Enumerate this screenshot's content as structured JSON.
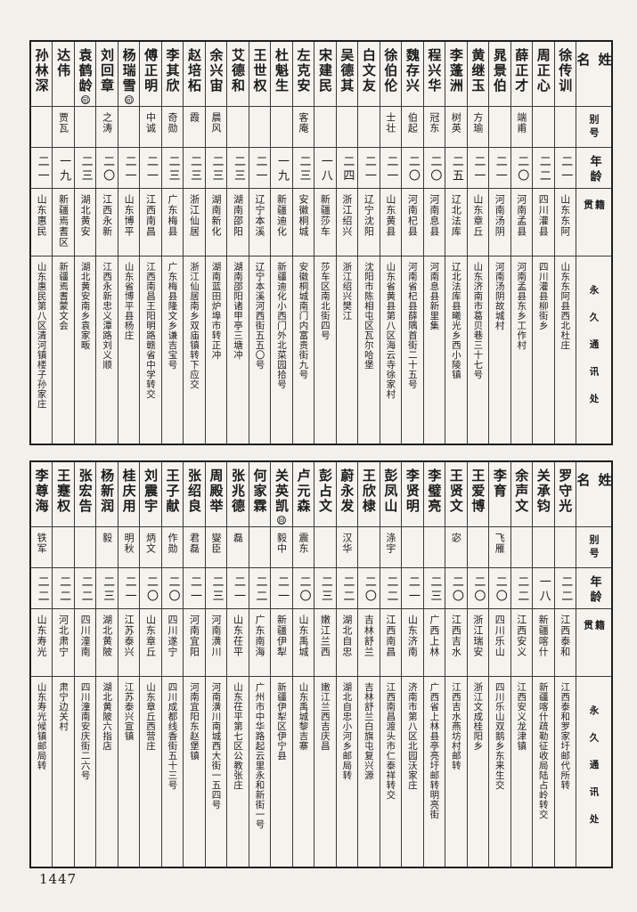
{
  "page": {
    "number": "1447"
  },
  "headers": {
    "name": "姓名",
    "alias": "别号",
    "age": "年龄",
    "native": "籍贯",
    "address": "永久通讯处"
  },
  "tables": [
    {
      "people": [
        {
          "name": "徐传训",
          "alias": "",
          "age": "二一",
          "native": "山东东阿",
          "address": "山东东阿县西北杜庄"
        },
        {
          "name": "周正心",
          "alias": "",
          "age": "二二",
          "native": "四川灌县",
          "address": "四川灌县柳街乡"
        },
        {
          "name": "薛正才",
          "alias": "端甫",
          "age": "二〇",
          "native": "河南孟县",
          "address": "河南孟县东乡工作村"
        },
        {
          "name": "晁景伯",
          "alias": "",
          "age": "二一",
          "native": "河南汤阴",
          "address": "河南汤阴故城村"
        },
        {
          "name": "黄继玉",
          "alias": "方瑜",
          "age": "二一",
          "native": "山东章丘",
          "address": "山东济南市葛贝巷三十七号"
        },
        {
          "name": "李蓬洲",
          "alias": "树英",
          "age": "二五",
          "native": "辽北法库",
          "address": "辽北法库县曦光乡西小陵镇"
        },
        {
          "name": "程兴华",
          "alias": "冠东",
          "age": "二〇",
          "native": "河南息县",
          "address": "河南息县新里集"
        },
        {
          "name": "魏存兴",
          "alias": "伯起",
          "age": "二〇",
          "native": "河南杞县",
          "address": "河南省杞县薛隅首街二十五号"
        },
        {
          "name": "徐伯伦",
          "alias": "士壮",
          "age": "二一",
          "native": "山东黄县",
          "address": "山东省黄县第八区海云寺徐家村"
        },
        {
          "name": "白文友",
          "alias": "",
          "age": "二一",
          "native": "辽宁沈阳",
          "address": "沈阳市陈相屯区瓦尔哈堡"
        },
        {
          "name": "吴德其",
          "alias": "",
          "age": "二四",
          "native": "浙江绍兴",
          "address": "浙江绍兴樊江"
        },
        {
          "name": "宋建民",
          "alias": "",
          "age": "一八",
          "native": "新疆莎车",
          "address": "莎车区南北街四号"
        },
        {
          "name": "左克安",
          "alias": "客庵",
          "age": "二三",
          "native": "安徽桐城",
          "address": "安徽桐城南门内富贵街九号"
        },
        {
          "name": "杜魁生",
          "alias": "",
          "age": "一九",
          "native": "新疆迪化",
          "address": "新疆迪化小西门外北菜园拾号"
        },
        {
          "name": "王世权",
          "alias": "",
          "age": "二一",
          "native": "辽宁本溪",
          "address": "辽宁本溪河西街五五〇号"
        },
        {
          "name": "艾德和",
          "alias": "",
          "age": "二三",
          "native": "湖南邵阳",
          "address": "湖南邵阳诸甲亭三塘冲"
        },
        {
          "name": "余兴宙",
          "alias": "晨风",
          "age": "二三",
          "native": "湖南新化",
          "address": "湖南蓝田炉埠市转正冲"
        },
        {
          "name": "赵培柘",
          "alias": "霞",
          "age": "二三",
          "native": "浙江仙居",
          "address": "浙江仙居南乡双庙镇转下应交"
        },
        {
          "name": "李其欣",
          "alias": "奇勋",
          "age": "二三",
          "native": "广东梅县",
          "address": "广东梅县隆文乡谦吉宝号"
        },
        {
          "name": "傅正明",
          "alias": "中诚",
          "age": "二一",
          "native": "江西南昌",
          "address": "江西南昌王阳明路赣省中学转交"
        },
        {
          "name": "杨瑞雪",
          "mark": "回",
          "alias": "",
          "age": "二一",
          "native": "山东博平",
          "address": "山东省博平县杨庄"
        },
        {
          "name": "刘回章",
          "alias": "之涛",
          "age": "二〇",
          "native": "江西永新",
          "address": "江西永新忠义潭路刘义顺"
        },
        {
          "name": "袁鹤龄",
          "mark": "回",
          "alias": "",
          "age": "二三",
          "native": "湖北黄安",
          "address": "湖北黄安南乡袁家畈"
        },
        {
          "name": "达伟",
          "alias": "贾瓦",
          "age": "一九",
          "native": "新疆焉耆区",
          "address": "新疆焉耆蒙文会"
        },
        {
          "name": "孙林深",
          "alias": "",
          "age": "二一",
          "native": "山东惠民",
          "address": "山东惠民第八区清河镇楼子孙家庄"
        }
      ]
    },
    {
      "people": [
        {
          "name": "罗守光",
          "alias": "",
          "age": "二二",
          "native": "江西泰和",
          "address": "江西泰和罗家圩邮代所转"
        },
        {
          "name": "关承钧",
          "alias": "",
          "age": "一八",
          "native": "新疆喀什",
          "address": "新疆喀什疏勒征收局陆占岭转交"
        },
        {
          "name": "余声文",
          "alias": "",
          "age": "二二",
          "native": "江西安义",
          "address": "江西安义龙津镇"
        },
        {
          "name": "李育",
          "alias": "飞雁",
          "age": "二〇",
          "native": "四川乐山",
          "address": "四川乐山双鹅乡东来生交"
        },
        {
          "name": "王爱博",
          "alias": "",
          "age": "二〇",
          "native": "浙江瑞安",
          "address": "浙江文成桂阳乡"
        },
        {
          "name": "王贤文",
          "alias": "宓",
          "age": "二〇",
          "native": "江西吉水",
          "address": "江西吉水燕坊村邮转"
        },
        {
          "name": "李璧亮",
          "alias": "",
          "age": "二三",
          "native": "广西上林",
          "address": "广西省上林县亭亮圩邮转明亮街"
        },
        {
          "name": "李贤明",
          "alias": "",
          "age": "二一",
          "native": "山东济南",
          "address": "济南市第八区北园沃家庄"
        },
        {
          "name": "彭凤山",
          "alias": "涤宇",
          "age": "二二",
          "native": "江西南昌",
          "address": "江西南昌渡头市仁泰祥转交"
        },
        {
          "name": "王欣棣",
          "alias": "",
          "age": "二〇",
          "native": "吉林舒兰",
          "address": "吉林舒兰白旗屯复兴源"
        },
        {
          "name": "蔚永发",
          "alias": "汉华",
          "age": "二二",
          "native": "湖北自忠",
          "address": "湖北自忠小河乡邮局转"
        },
        {
          "name": "彭占文",
          "alias": "",
          "age": "二三",
          "native": "嫩江兰西",
          "address": "嫩江兰西吉庆昌"
        },
        {
          "name": "卢元森",
          "alias": "震东",
          "age": "二〇",
          "native": "山东禹城",
          "address": "山东禹城黎吉寨"
        },
        {
          "name": "关英凯",
          "mark": "回",
          "alias": "毅中",
          "age": "二一",
          "native": "新疆伊犁",
          "address": "新疆伊犁区伊宁县"
        },
        {
          "name": "何家霖",
          "alias": "",
          "age": "二二",
          "native": "广东南海",
          "address": "广州市中华路起云里永和新街一号"
        },
        {
          "name": "张兆德",
          "alias": "磊",
          "age": "二一",
          "native": "山东茌平",
          "address": "山东茌平第七区公教张庄"
        },
        {
          "name": "周殿举",
          "alias": "燮臣",
          "age": "二三",
          "native": "河南潢川",
          "address": "河南潢川南城西大街一五四号"
        },
        {
          "name": "张绍良",
          "alias": "君磊",
          "age": "二一",
          "native": "河南宜阳",
          "address": "河南宜阳东赵堡镇"
        },
        {
          "name": "王子献",
          "alias": "作勋",
          "age": "二〇",
          "native": "四川遂宁",
          "address": "四川成都线香街五十三号"
        },
        {
          "name": "刘震宇",
          "alias": "炳文",
          "age": "二〇",
          "native": "山东章丘",
          "address": "山东章丘西营庄"
        },
        {
          "name": "桂庆用",
          "alias": "明秋",
          "age": "二一",
          "native": "江苏泰兴",
          "address": "江苏泰兴宣镇"
        },
        {
          "name": "杨新润",
          "alias": "毅",
          "age": "二三",
          "native": "湖北黄陂",
          "address": "湖北黄陂六指店"
        },
        {
          "name": "张宏告",
          "alias": "",
          "age": "二二",
          "native": "四川潼南",
          "address": "四川潼南安庆街二六号"
        },
        {
          "name": "王蹇权",
          "alias": "",
          "age": "二二",
          "native": "河北肃宁",
          "address": "肃宁边关村"
        },
        {
          "name": "李尊海",
          "alias": "铁军",
          "age": "二二",
          "native": "山东寿光",
          "address": "山东寿光候镇邮局转"
        }
      ]
    }
  ]
}
